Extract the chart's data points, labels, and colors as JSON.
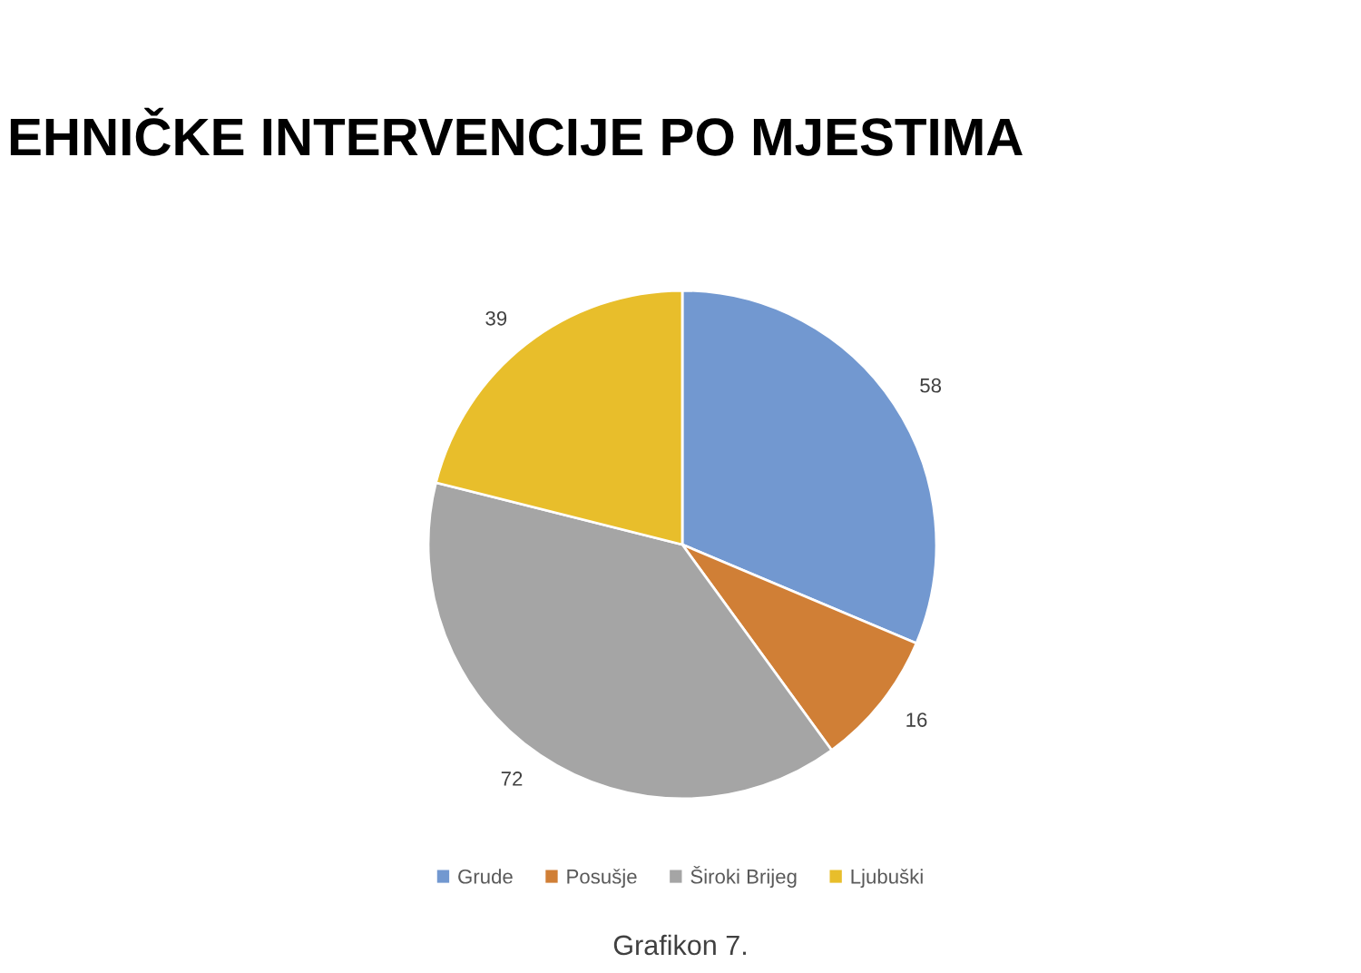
{
  "chart_data": {
    "type": "pie",
    "title": "EHNIČKE INTERVENCIJE PO MJESTIMA",
    "categories": [
      "Grude",
      "Posušje",
      "Široki Brijeg",
      "Ljubuški"
    ],
    "values": [
      58,
      16,
      72,
      39
    ],
    "colors": [
      "#7298d0",
      "#d07f36",
      "#a5a5a5",
      "#e8be2b"
    ],
    "data_labels": true,
    "legend": "bottom",
    "annotations": [
      "Grafikon 7."
    ]
  }
}
